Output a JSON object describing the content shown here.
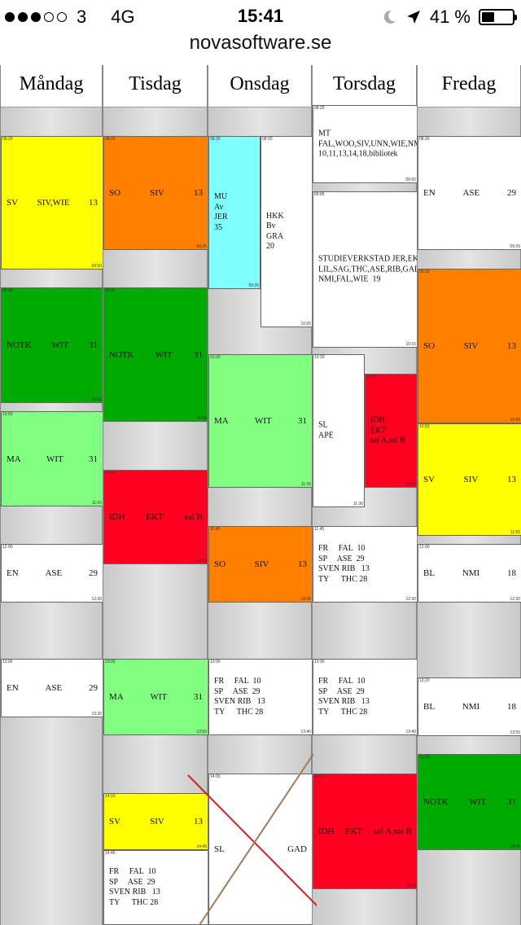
{
  "status": {
    "carrier": "3",
    "network": "4G",
    "time": "15:41",
    "battery": "41 %",
    "battery_level": 0.41,
    "signal_bars_filled": 3,
    "signal_bars_total": 5
  },
  "browser": {
    "url": "novasoftware.se"
  },
  "colors": {
    "yellow": "#ffff00",
    "orange": "#ff8000",
    "green_dark": "#00aa00",
    "green_light": "#80ff80",
    "red": "#ff0020",
    "cyan": "#80ffff",
    "white": "#ffffff"
  },
  "days": [
    {
      "name": "Måndag",
      "header_mini": "",
      "lessons": [
        {
          "color": "yellow",
          "start": "08:20",
          "end": "09:50",
          "text": [
            "SV",
            "SIV,WIE",
            "13"
          ]
        },
        {
          "color": "green_dark",
          "start": "09:45",
          "end": "10:50",
          "text": [
            "NOTK",
            "WIT",
            "31"
          ]
        },
        {
          "color": "green_light",
          "start": "10:50",
          "end": "11:50",
          "text": [
            "MA",
            "WIT",
            "31"
          ]
        },
        {
          "color": "white",
          "start": "12:00",
          "end": "12:30",
          "text": [
            "EN",
            "ASE",
            "29"
          ]
        },
        {
          "color": "white",
          "start": "13:00",
          "end": "13:30",
          "text": [
            "EN",
            "ASE",
            "29"
          ]
        }
      ]
    },
    {
      "name": "Tisdag",
      "lessons": [
        {
          "color": "orange",
          "start": "08:20",
          "end": "09:25",
          "text": [
            "SO",
            "SIV",
            "13"
          ]
        },
        {
          "color": "green_dark",
          "start": "09:35",
          "end": "10:55",
          "text": [
            "NOTK",
            "WIT",
            "31"
          ]
        },
        {
          "color": "red",
          "start": "11:20",
          "end": "12:05",
          "text": [
            "IDH",
            "EKT",
            "sal B"
          ]
        },
        {
          "color": "green_light",
          "start": "13:00",
          "end": "13:50",
          "text": [
            "MA",
            "WIT",
            "31"
          ]
        },
        {
          "color": "yellow",
          "start": "14:10",
          "end": "14:45",
          "text": [
            "SV",
            "SIV",
            "13"
          ]
        },
        {
          "color": "white",
          "start": "14:45",
          "end": "",
          "lines": "FR     FAL  10\nSP     ASE  29\nSVEN RIB   13\nTY      THC 28"
        }
      ]
    },
    {
      "name": "Onsdag",
      "lessons": [
        {
          "color": "cyan",
          "start": "08:20",
          "end": "09:35",
          "lines": "MU\nAv\nJER\n35"
        },
        {
          "color": "white",
          "start": "08:20",
          "end": "10:05",
          "lines": "HKK\nBv\nGRA\n20"
        },
        {
          "color": "green_light",
          "start": "10:20",
          "end": "11:30",
          "text": [
            "MA",
            "WIT",
            "31"
          ]
        },
        {
          "color": "orange",
          "start": "11:45",
          "end": "12:30",
          "text": [
            "SO",
            "SIV",
            "13"
          ]
        },
        {
          "color": "white",
          "start": "13:00",
          "end": "13:40",
          "lines": "FR     FAL  10\nSP     ASE  29\nSVEN RIB   13\nTY      THC 28"
        },
        {
          "color": "white",
          "start": "14:00",
          "end": "",
          "text": [
            "SL",
            "",
            "GAD"
          ]
        }
      ]
    },
    {
      "name": "Torsdag",
      "lessons": [
        {
          "color": "white",
          "start": "08:20",
          "end": "09:00",
          "lines": "MT\nFAL,WOO,SIV,UNN,WIE,NMI\n10,11,13,14,18,bibliotek"
        },
        {
          "color": "white",
          "start": "09:05",
          "end": "10:15",
          "lines": "STUDIEVERKSTAD JER,EKT,\nLIL,SAG,THC,ASE,RIB,GAD,\nNMI,FAL,WIE  19"
        },
        {
          "color": "white",
          "start": "10:20",
          "end": "11:30",
          "lines": "SL\nAPE"
        },
        {
          "color": "red",
          "start": "10:35",
          "end": "11:30",
          "lines": "IDH\nEKT\nsal A,sal B"
        },
        {
          "color": "white",
          "start": "11:45",
          "end": "12:30",
          "lines": "FR     FAL  10\nSP     ASE  29\nSVEN RIB   13\nTY      THC 28"
        },
        {
          "color": "white",
          "start": "13:00",
          "end": "13:40",
          "lines": "FR     FAL  10\nSP     ASE  29\nSVEN RIB   13\nTY      THC 28"
        },
        {
          "color": "red",
          "start": "14:00",
          "end": "14:50",
          "text": [
            "IDH",
            "EKT",
            "sal A,sal B"
          ]
        }
      ]
    },
    {
      "name": "Fredag",
      "lessons": [
        {
          "color": "white",
          "start": "08:20",
          "end": "09:25",
          "text": [
            "EN",
            "ASE",
            "29"
          ]
        },
        {
          "color": "orange",
          "start": "09:25",
          "end": "10:50",
          "text": [
            "SO",
            "SIV",
            "13"
          ]
        },
        {
          "color": "yellow",
          "start": "10:50",
          "end": "11:55",
          "text": [
            "SV",
            "SIV",
            "13"
          ]
        },
        {
          "color": "white",
          "start": "12:00",
          "end": "12:30",
          "text": [
            "BL",
            "NMI",
            "18"
          ]
        },
        {
          "color": "white",
          "start": "13:20",
          "end": "13:55",
          "text": [
            "BL",
            "NMI",
            "18"
          ]
        },
        {
          "color": "green_dark",
          "start": "13:55",
          "end": "14:45",
          "text": [
            "NOTK",
            "WIT",
            "31"
          ]
        }
      ]
    }
  ],
  "times": {
    "morning_start": "08:10"
  }
}
